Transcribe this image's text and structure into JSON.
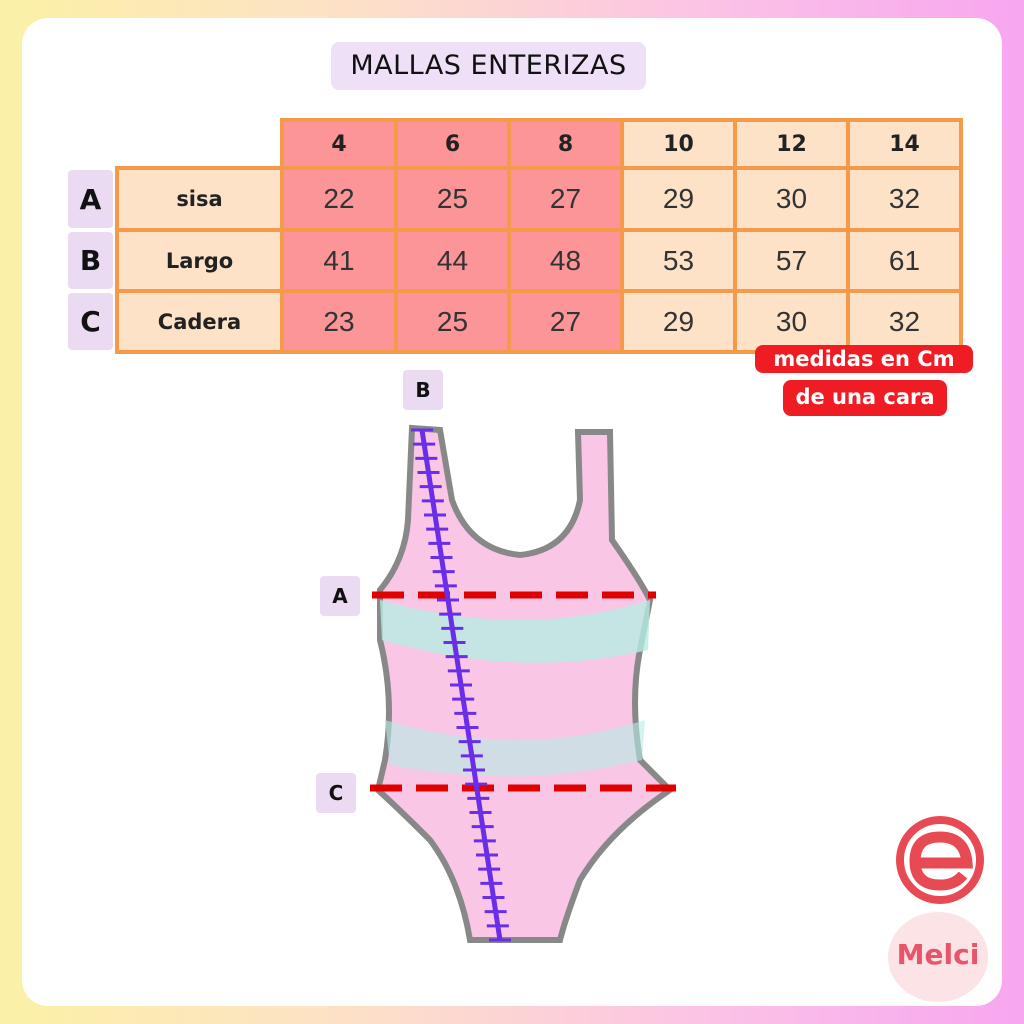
{
  "title": "MALLAS ENTERIZAS",
  "sizes": [
    "4",
    "6",
    "8",
    "10",
    "12",
    "14"
  ],
  "rows": [
    {
      "letter": "A",
      "label": "sisa",
      "values": [
        "22",
        "25",
        "27",
        "29",
        "30",
        "32"
      ]
    },
    {
      "letter": "B",
      "label": "Largo",
      "values": [
        "41",
        "44",
        "48",
        "53",
        "57",
        "61"
      ]
    },
    {
      "letter": "C",
      "label": "Cadera",
      "values": [
        "23",
        "25",
        "27",
        "29",
        "30",
        "32"
      ]
    }
  ],
  "note": {
    "line1": "medidas en Cm",
    "line2": "de una cara"
  },
  "diagram_labels": {
    "a": "A",
    "b": "B",
    "c": "C"
  },
  "logo": {
    "text": "Melci",
    "icon": "e-logo-icon"
  },
  "colors": {
    "small_sizes": "#fb9597",
    "large_sizes": "#fde2c8",
    "border": "#f59a4a",
    "note_bg": "#ef1c24",
    "measure_line": "#e00000",
    "length_line": "#6a2ee8"
  }
}
